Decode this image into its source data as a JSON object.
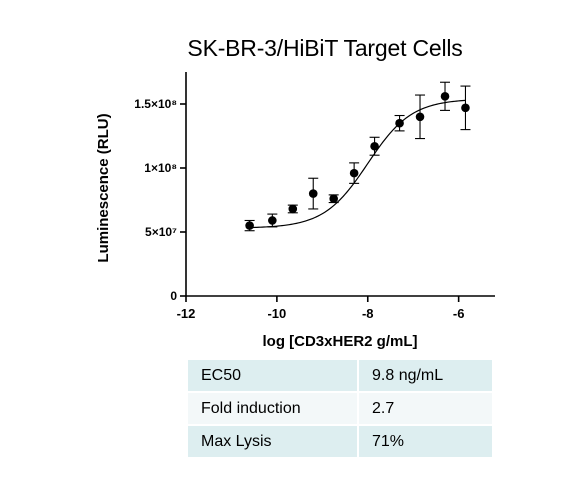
{
  "chart_data": {
    "type": "scatter",
    "title": "SK-BR-3/HiBiT Target Cells",
    "xlabel": "log [CD3xHER2 g/mL]",
    "ylabel": "Luminescence (RLU)",
    "xlim": [
      -12,
      -5.2
    ],
    "ylim": [
      0,
      175000000
    ],
    "x_ticks": [
      -12,
      -10,
      -8,
      -6
    ],
    "x_tick_labels": [
      "-12",
      "-10",
      "-8",
      "-6"
    ],
    "y_ticks": [
      0,
      50000000,
      100000000,
      150000000
    ],
    "y_tick_labels": [
      "0",
      "5×10⁷",
      "1×10⁸",
      "1.5×10⁸"
    ],
    "grid": false,
    "series": [
      {
        "x": [
          -10.6,
          -10.1,
          -9.65,
          -9.2,
          -8.75,
          -8.3,
          -7.85,
          -7.3,
          -6.85,
          -6.3,
          -5.85
        ],
        "y": [
          55000000,
          59000000,
          68000000,
          80000000,
          76000000,
          96000000,
          117000000,
          135000000,
          140000000,
          156000000,
          147000000
        ],
        "error": [
          4000000,
          5000000,
          3000000,
          12000000,
          3000000,
          8000000,
          7000000,
          6000000,
          17000000,
          11000000,
          17000000
        ]
      }
    ],
    "fit": {
      "type": "4PL",
      "bottom": 53000000,
      "top": 154000000,
      "log_ec50": -8.0,
      "hill": 0.9,
      "x_range": [
        -10.6,
        -5.85
      ]
    }
  },
  "results": [
    {
      "label": "EC50",
      "value": "9.8 ng/mL"
    },
    {
      "label": "Fold induction",
      "value": "2.7"
    },
    {
      "label": "Max Lysis",
      "value": "71%"
    }
  ]
}
